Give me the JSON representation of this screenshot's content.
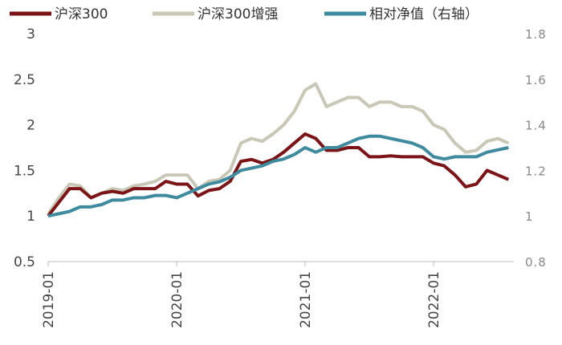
{
  "chart_data": {
    "type": "line",
    "x": [
      "2019-01",
      "2019-02",
      "2019-03",
      "2019-04",
      "2019-05",
      "2019-06",
      "2019-07",
      "2019-08",
      "2019-09",
      "2019-10",
      "2019-11",
      "2019-12",
      "2020-01",
      "2020-02",
      "2020-03",
      "2020-04",
      "2020-05",
      "2020-06",
      "2020-07",
      "2020-08",
      "2020-09",
      "2020-10",
      "2020-11",
      "2020-12",
      "2021-01",
      "2021-02",
      "2021-03",
      "2021-04",
      "2021-05",
      "2021-06",
      "2021-07",
      "2021-08",
      "2021-09",
      "2021-10",
      "2021-11",
      "2021-12",
      "2022-01",
      "2022-02",
      "2022-03",
      "2022-04",
      "2022-05",
      "2022-06",
      "2022-07",
      "2022-08"
    ],
    "xticks": [
      "2019-01",
      "2020-01",
      "2021-01",
      "2022-01"
    ],
    "series": [
      {
        "name": "沪深300",
        "color": "#7a1416",
        "values": [
          1.0,
          1.15,
          1.3,
          1.3,
          1.2,
          1.25,
          1.27,
          1.25,
          1.3,
          1.3,
          1.3,
          1.38,
          1.35,
          1.35,
          1.22,
          1.28,
          1.3,
          1.38,
          1.6,
          1.62,
          1.58,
          1.62,
          1.7,
          1.8,
          1.9,
          1.85,
          1.72,
          1.72,
          1.75,
          1.75,
          1.65,
          1.65,
          1.66,
          1.65,
          1.65,
          1.65,
          1.58,
          1.55,
          1.45,
          1.32,
          1.35,
          1.5,
          1.45,
          1.4
        ]
      },
      {
        "name": "沪深300增强",
        "color": "#c9c7b6",
        "values": [
          1.02,
          1.2,
          1.35,
          1.33,
          1.2,
          1.25,
          1.3,
          1.28,
          1.33,
          1.35,
          1.38,
          1.45,
          1.45,
          1.45,
          1.3,
          1.38,
          1.4,
          1.5,
          1.8,
          1.85,
          1.82,
          1.9,
          2.0,
          2.15,
          2.38,
          2.45,
          2.2,
          2.25,
          2.3,
          2.3,
          2.2,
          2.25,
          2.25,
          2.2,
          2.2,
          2.15,
          2.0,
          1.95,
          1.8,
          1.7,
          1.72,
          1.82,
          1.85,
          1.8
        ]
      },
      {
        "name": "相对净值（右轴）",
        "color": "#3e8a9e",
        "axis": "y2",
        "values": [
          1.0,
          1.01,
          1.02,
          1.04,
          1.04,
          1.05,
          1.07,
          1.07,
          1.08,
          1.08,
          1.09,
          1.09,
          1.08,
          1.1,
          1.12,
          1.14,
          1.15,
          1.17,
          1.2,
          1.21,
          1.22,
          1.24,
          1.25,
          1.27,
          1.3,
          1.28,
          1.3,
          1.3,
          1.32,
          1.34,
          1.35,
          1.35,
          1.34,
          1.33,
          1.32,
          1.3,
          1.26,
          1.25,
          1.26,
          1.26,
          1.26,
          1.28,
          1.29,
          1.3
        ]
      }
    ],
    "ylim": [
      0.5,
      3
    ],
    "yticks": [
      0.5,
      1,
      1.5,
      2,
      2.5,
      3
    ],
    "y2lim": [
      0.8,
      1.8
    ],
    "y2ticks": [
      0.8,
      1,
      1.2,
      1.4,
      1.6,
      1.8
    ],
    "legend": "top"
  }
}
